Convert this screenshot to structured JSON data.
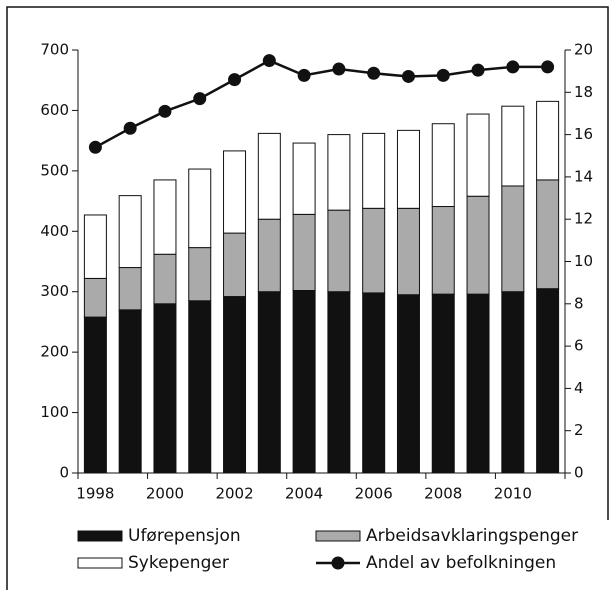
{
  "chart_data": {
    "type": "bar-line",
    "categories": [
      "1998",
      null,
      "2000",
      null,
      "2002",
      null,
      "2004",
      null,
      "2006",
      null,
      "2008",
      null,
      "2010",
      null
    ],
    "series": [
      {
        "name": "Uførepensjon",
        "color": "#111111",
        "kind": "bar",
        "values": [
          258,
          270,
          280,
          285,
          292,
          300,
          302,
          300,
          298,
          295,
          296,
          296,
          300,
          305
        ]
      },
      {
        "name": "Arbeidsavklaringspenger",
        "color": "#aaaaaa",
        "kind": "bar",
        "values": [
          64,
          70,
          82,
          88,
          105,
          120,
          126,
          135,
          140,
          143,
          145,
          162,
          175,
          180
        ]
      },
      {
        "name": "Sykepenger",
        "color": "#ffffff",
        "kind": "bar",
        "values": [
          105,
          119,
          123,
          130,
          136,
          142,
          118,
          125,
          124,
          129,
          137,
          136,
          132,
          130
        ]
      },
      {
        "name": "Andel av befolkningen",
        "color": "#111111",
        "kind": "line",
        "axis": "y2",
        "values": [
          15.4,
          16.3,
          17.1,
          17.7,
          18.6,
          19.5,
          18.8,
          19.1,
          18.9,
          18.75,
          18.8,
          19.05,
          19.2,
          19.2
        ]
      }
    ],
    "stacked": true,
    "ylim": [
      0,
      700
    ],
    "yticks": [
      0,
      100,
      200,
      300,
      400,
      500,
      600,
      700
    ],
    "y2lim": [
      0,
      20
    ],
    "y2ticks": [
      0,
      2,
      4,
      6,
      8,
      10,
      12,
      14,
      16,
      18,
      20
    ]
  }
}
